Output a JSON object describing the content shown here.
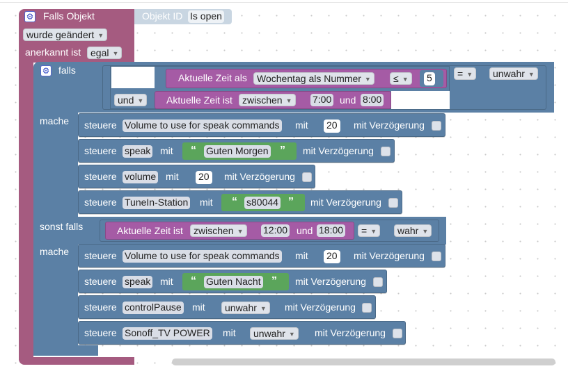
{
  "event": {
    "title": "Falls Objekt",
    "object_label": "Objekt ID",
    "object_value": "Is open",
    "changed_value": "wurde geändert",
    "ack_label": "anerkannt ist",
    "ack_value": "egal"
  },
  "if_block": {
    "if_label": "falls",
    "then_label": "mache",
    "elseif_label": "sonst falls",
    "then2_label": "mache"
  },
  "cond1": {
    "time_as": "Aktuelle Zeit als",
    "weekday_dd": "Wochentag als Nummer",
    "op": "≤",
    "num": "5",
    "eq_op": "=",
    "bool": "unwahr",
    "and_dd": "und",
    "time_is": "Aktuelle Zeit ist",
    "between_dd": "zwischen",
    "t_start": "7:00",
    "and_word": "und",
    "t_end": "8:00"
  },
  "cond2": {
    "time_is": "Aktuelle Zeit ist",
    "between_dd": "zwischen",
    "t_start": "12:00",
    "and_word": "und",
    "t_end": "18:00",
    "eq_op": "=",
    "bool": "wahr"
  },
  "set_common": {
    "steuere": "steuere",
    "mit": "mit",
    "delay": "mit Verzögerung"
  },
  "then1": [
    {
      "target": "Volume to use for speak commands",
      "value": "20"
    },
    {
      "target": "speak",
      "value": "Guten Morgen"
    },
    {
      "target": "volume",
      "value": "20"
    },
    {
      "target": "TuneIn-Station",
      "value": "s80044"
    }
  ],
  "then2": [
    {
      "target": "Volume to use for speak commands",
      "value": "20"
    },
    {
      "target": "speak",
      "value": "Guten Nacht"
    },
    {
      "target": "controlPause",
      "value": "unwahr"
    },
    {
      "target": "Sonoff_TV POWER",
      "value": "unwahr"
    }
  ],
  "icons": {
    "gear": "gear-icon",
    "checkbox": "checkbox",
    "quote": "quote-icon"
  },
  "colors": {
    "event": "#a55b80",
    "logic": "#5b80a5",
    "time": "#a55ba5",
    "text": "#5ba55b"
  }
}
